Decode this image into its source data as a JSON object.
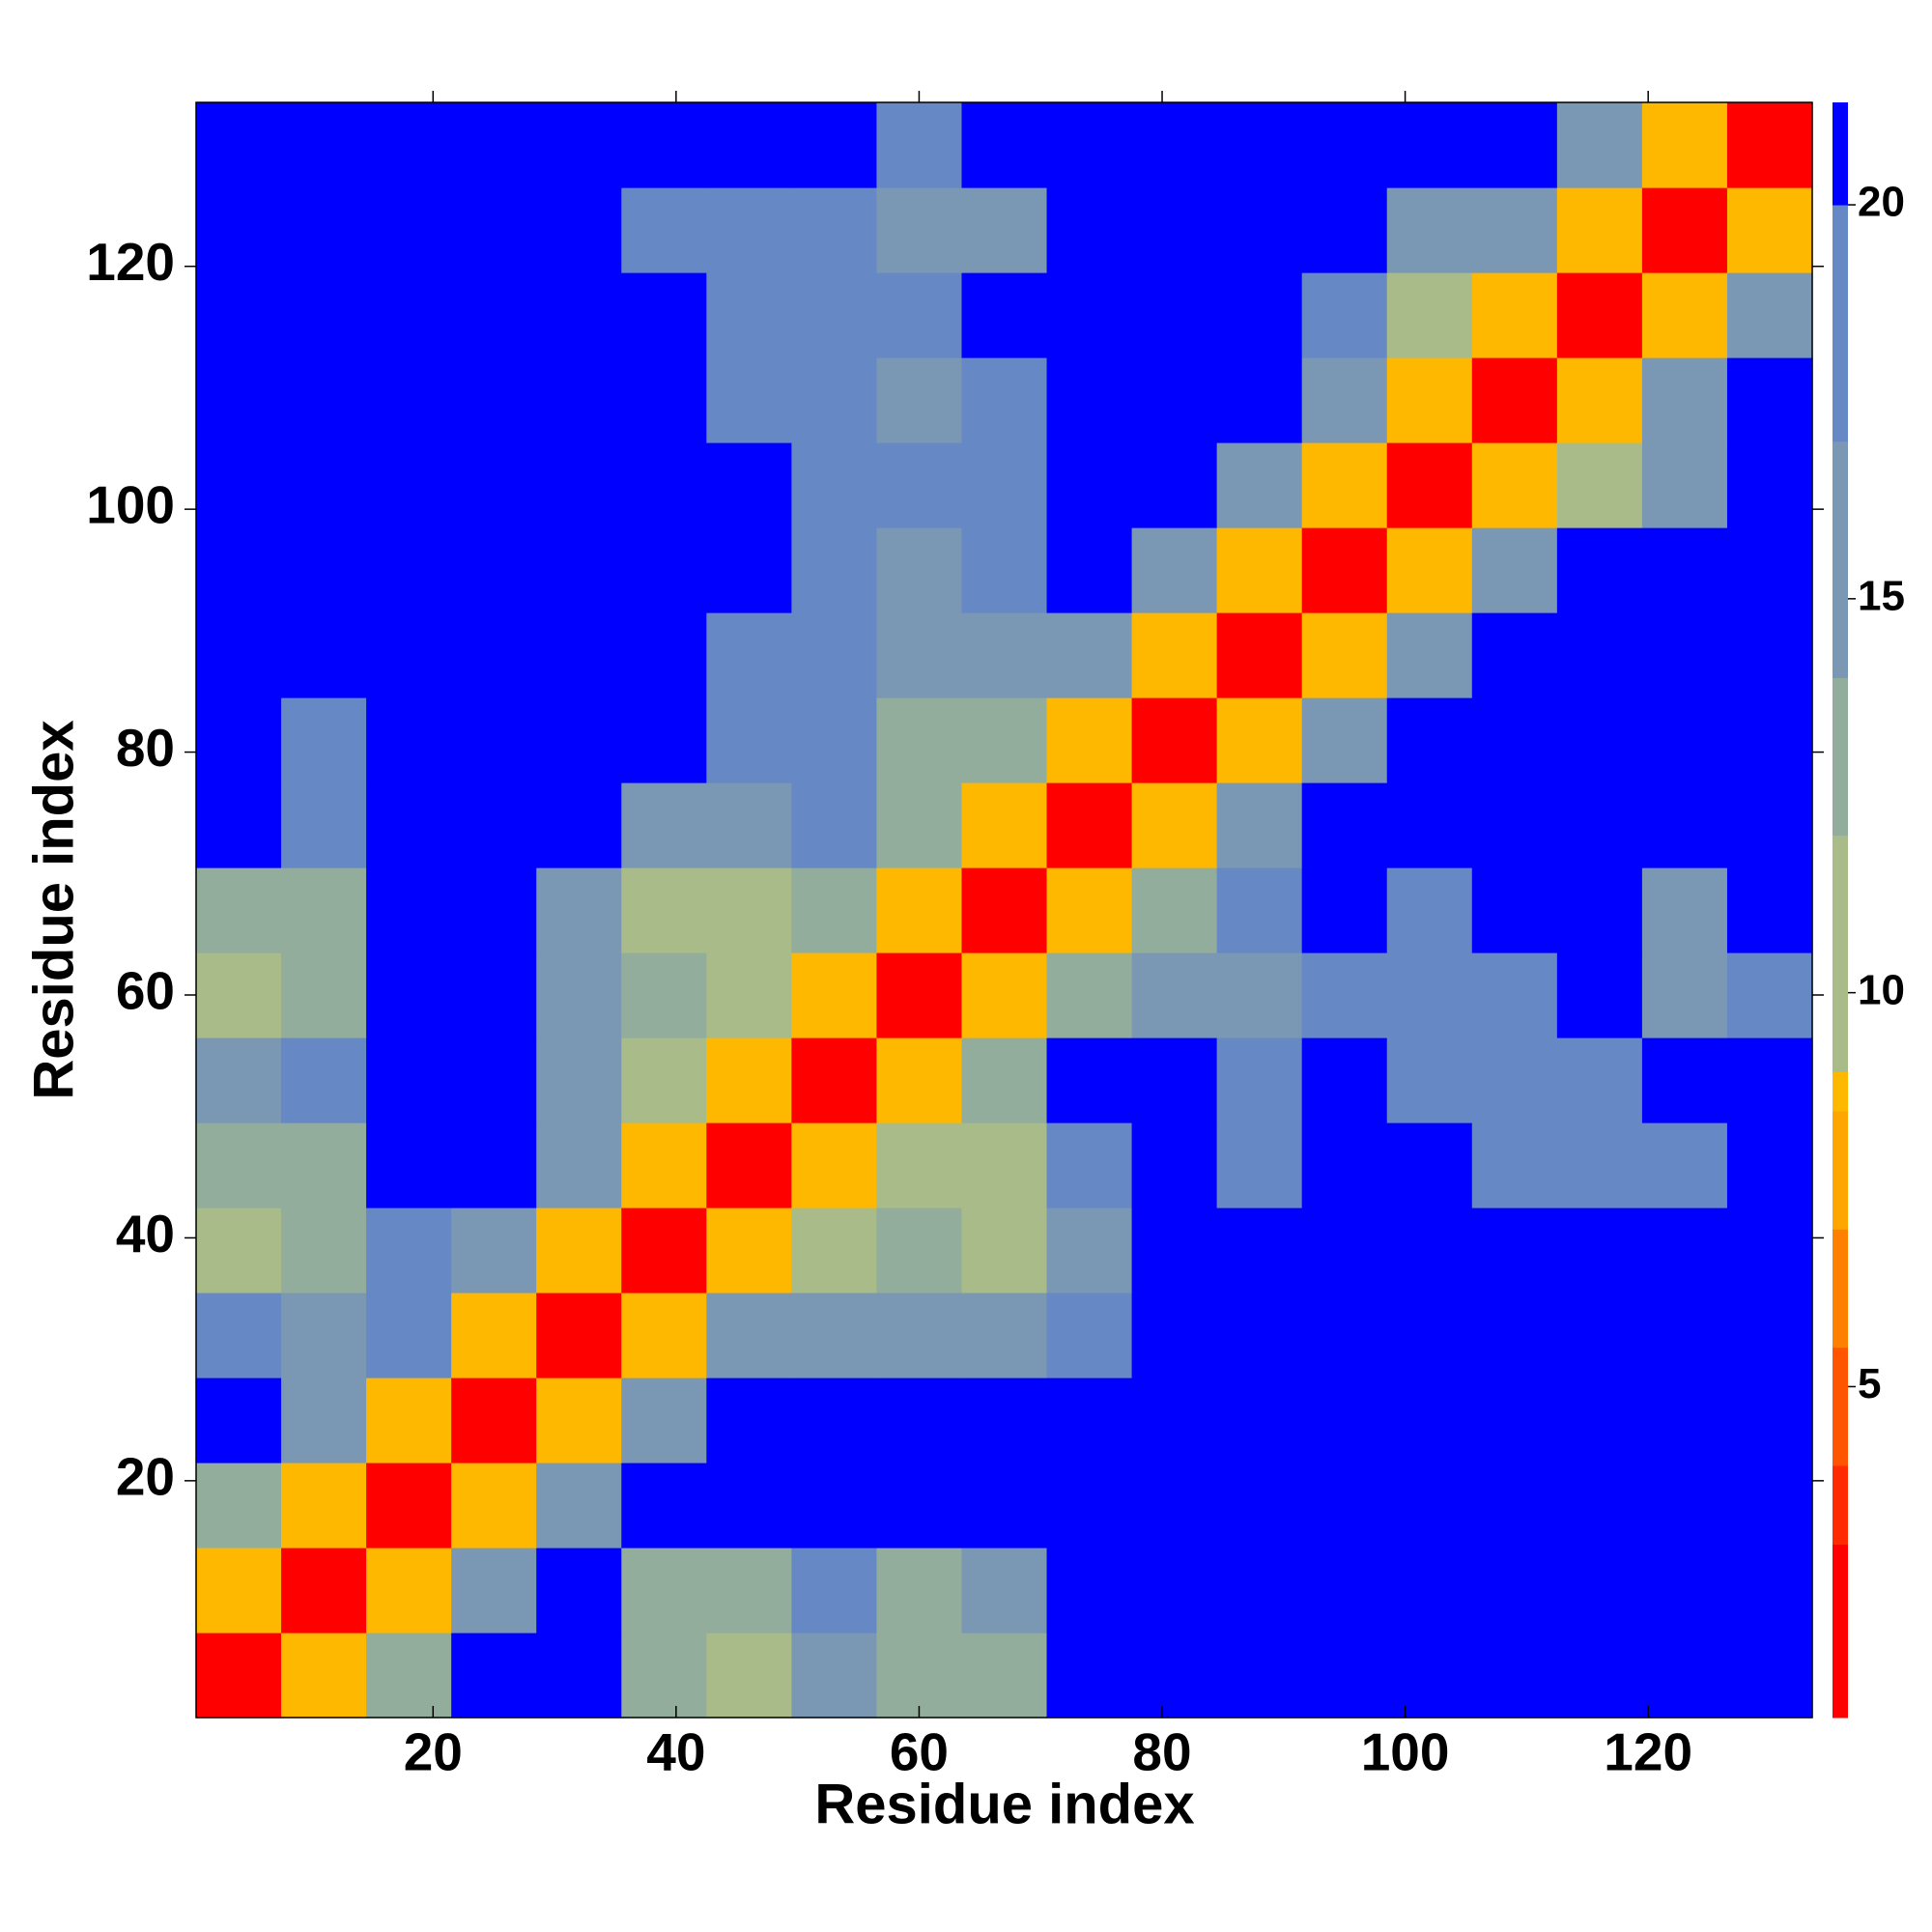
{
  "chart_data": {
    "type": "heatmap",
    "x_label": "Residue index",
    "y_label": "Residue index",
    "xlim": [
      0.5,
      133.5
    ],
    "ylim": [
      0.5,
      133.5
    ],
    "xticks": [
      20,
      40,
      60,
      80,
      100,
      120
    ],
    "yticks": [
      20,
      40,
      60,
      80,
      100,
      120
    ],
    "xbins": [
      0.5,
      7.5,
      14.5,
      21.5,
      28.5,
      35.5,
      42.5,
      49.5,
      56.5,
      63.5,
      70.5,
      77.5,
      84.5,
      91.5,
      98.5,
      105.5,
      112.5,
      119.5,
      126.5,
      133.5
    ],
    "ybins": [
      0.5,
      7.5,
      14.5,
      21.5,
      28.5,
      35.5,
      42.5,
      49.5,
      56.5,
      63.5,
      70.5,
      77.5,
      84.5,
      91.5,
      98.5,
      105.5,
      112.5,
      119.5,
      126.5,
      133.5
    ],
    "z": [
      [
        2,
        9,
        14,
        21,
        21,
        13,
        12,
        15,
        13,
        13,
        21,
        21,
        21,
        21,
        21,
        21,
        21,
        21,
        21
      ],
      [
        9,
        2,
        9,
        15,
        21,
        14,
        14,
        18,
        14,
        15,
        21,
        21,
        21,
        21,
        21,
        21,
        21,
        21,
        21
      ],
      [
        14,
        9,
        2,
        9,
        17,
        21,
        21,
        21,
        21,
        21,
        21,
        21,
        21,
        21,
        21,
        21,
        21,
        21,
        21
      ],
      [
        21,
        15,
        9,
        2,
        9,
        17,
        21,
        21,
        21,
        21,
        21,
        21,
        21,
        21,
        21,
        21,
        21,
        21,
        21
      ],
      [
        19,
        17,
        18,
        9,
        2,
        9,
        15,
        16,
        17,
        16,
        18,
        21,
        21,
        21,
        21,
        21,
        21,
        21,
        21
      ],
      [
        12,
        13,
        19,
        17,
        9,
        2,
        9,
        12,
        13,
        12,
        17,
        21,
        21,
        21,
        21,
        21,
        21,
        21,
        21
      ],
      [
        13,
        14,
        21,
        21,
        15,
        9,
        2,
        9,
        12,
        12,
        18,
        21,
        19,
        21,
        21,
        19,
        20,
        19,
        21
      ],
      [
        16,
        19,
        21,
        21,
        16,
        12,
        9,
        2,
        9,
        13,
        21,
        21,
        19,
        21,
        19,
        19,
        20,
        21,
        21
      ],
      [
        12,
        13,
        21,
        21,
        17,
        13,
        12,
        9,
        2,
        9,
        13,
        16,
        17,
        19,
        18,
        19,
        21,
        16,
        19
      ],
      [
        13,
        14,
        21,
        21,
        16,
        12,
        12,
        13,
        9,
        2,
        9,
        14,
        19,
        21,
        20,
        21,
        21,
        17,
        21
      ],
      [
        21,
        19,
        21,
        21,
        21,
        15,
        16,
        20,
        13,
        9,
        2,
        9,
        16,
        21,
        21,
        21,
        21,
        21,
        21
      ],
      [
        21,
        20,
        21,
        21,
        21,
        21,
        20,
        19,
        14,
        13,
        9,
        2,
        9,
        15,
        21,
        21,
        21,
        21,
        21
      ],
      [
        21,
        21,
        21,
        21,
        21,
        21,
        19,
        18,
        16,
        17,
        15,
        9,
        2,
        9,
        16,
        21,
        21,
        21,
        21
      ],
      [
        21,
        21,
        21,
        21,
        21,
        21,
        21,
        19,
        17,
        19,
        21,
        16,
        9,
        2,
        9,
        16,
        21,
        21,
        21
      ],
      [
        21,
        21,
        21,
        21,
        21,
        21,
        21,
        20,
        18,
        18,
        21,
        21,
        17,
        9,
        2,
        9,
        12,
        16,
        21
      ],
      [
        21,
        21,
        21,
        21,
        21,
        21,
        19,
        18,
        17,
        19,
        21,
        21,
        21,
        16,
        9,
        2,
        9,
        16,
        21
      ],
      [
        21,
        21,
        21,
        21,
        21,
        21,
        20,
        19,
        20,
        21,
        21,
        21,
        21,
        19,
        12,
        9,
        2,
        9,
        15
      ],
      [
        21,
        21,
        21,
        21,
        21,
        19,
        18,
        19,
        15,
        17,
        21,
        21,
        21,
        21,
        16,
        16,
        9,
        2,
        9
      ],
      [
        21,
        21,
        21,
        21,
        21,
        21,
        21,
        21,
        19,
        21,
        21,
        21,
        21,
        21,
        21,
        21,
        15,
        9,
        2
      ]
    ],
    "clim": [
      0.8,
      21.3
    ],
    "levels": [
      0.8,
      3,
      4,
      5.5,
      7,
      8.5,
      9,
      12,
      14,
      17,
      20,
      21.3
    ],
    "colors": [
      "#ff0000",
      "#ff2a00",
      "#ff5500",
      "#ff8000",
      "#ffa500",
      "#ffb800",
      "#a8bb88",
      "#92ad9c",
      "#7a98b4",
      "#6688c4",
      "#0000ff"
    ],
    "colorbar_ticks": [
      5,
      10,
      15,
      20
    ]
  }
}
